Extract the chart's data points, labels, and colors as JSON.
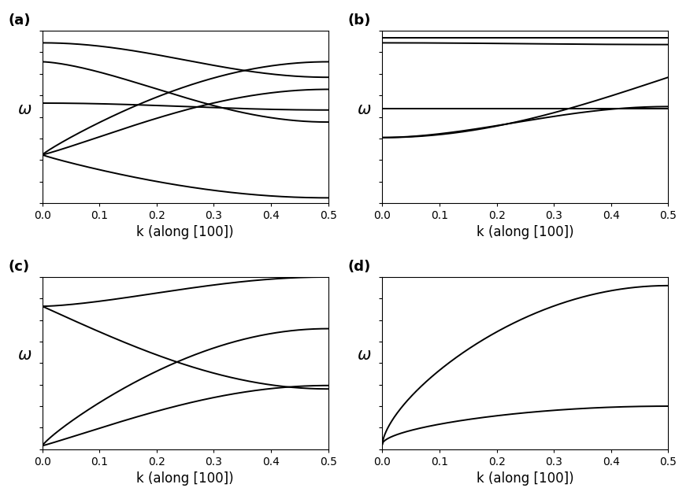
{
  "xlabel": "k (along [100])",
  "ylabel": "\\omega",
  "k_range": [
    0.0,
    0.5
  ],
  "background_color": "#ffffff",
  "line_color": "#000000",
  "line_width": 1.4,
  "label_fontsize": 12,
  "tick_fontsize": 10,
  "panel_labels": [
    "(a)",
    "(b)",
    "(c)",
    "(d)"
  ],
  "panel_label_fontsize": 13
}
